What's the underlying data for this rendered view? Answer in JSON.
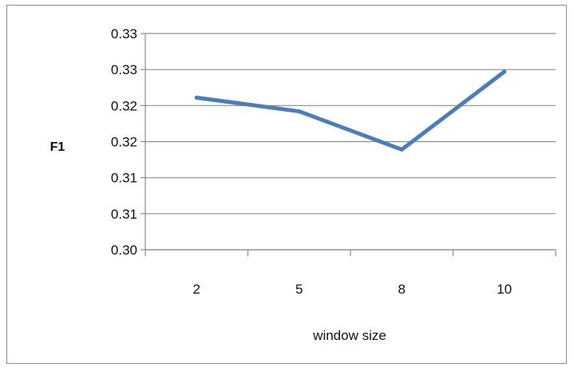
{
  "chart_data": {
    "type": "line",
    "categories": [
      "2",
      "5",
      "8",
      "10"
    ],
    "series": [
      {
        "values": [
          0.3211,
          0.3192,
          0.3139,
          0.3247
        ],
        "color": "#4a7ebb"
      }
    ],
    "xlabel": "window size",
    "ylabel": "F1",
    "ylim": [
      0.3,
      0.33
    ],
    "yticks": [
      0.3,
      0.305,
      0.31,
      0.315,
      0.32,
      0.325,
      0.33
    ],
    "ytick_labels": [
      "0.30",
      "0.31",
      "0.31",
      "0.32",
      "0.32",
      "0.33",
      "0.33"
    ],
    "grid": true,
    "gridline_color": "#8c8c8c",
    "legend": "none"
  }
}
